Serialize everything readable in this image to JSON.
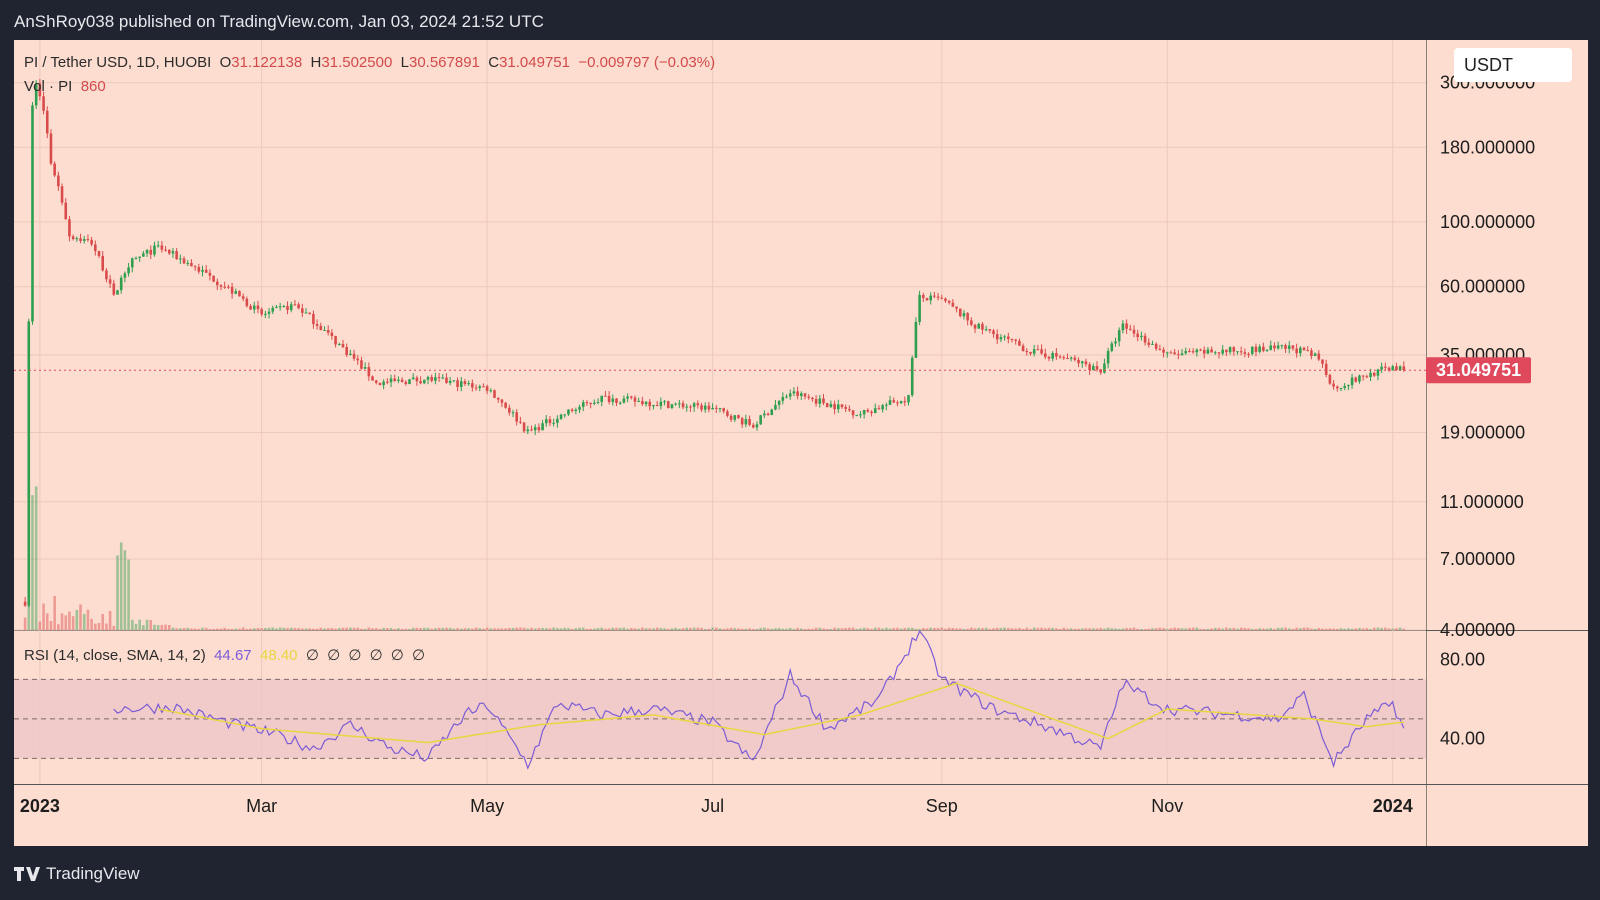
{
  "header": {
    "publisher_line": "AnShRoy038 published on TradingView.com, Jan 03, 2024 21:52 UTC"
  },
  "legend": {
    "symbol": "PI / Tether USD, 1D, HUOBI",
    "o_label": "O",
    "o": "31.122138",
    "h_label": "H",
    "h": "31.502500",
    "l_label": "L",
    "l": "30.567891",
    "c_label": "C",
    "c": "31.049751",
    "change": "−0.009797 (−0.03%)",
    "vol_label": "Vol · PI",
    "vol": "860",
    "rsi_label": "RSI (14, close, SMA, 14, 2)",
    "rsi": "44.67",
    "rsi_sma": "48.40",
    "rsi_nulls": "∅ ∅ ∅ ∅ ∅ ∅"
  },
  "badge": {
    "currency": "USDT"
  },
  "footer": {
    "brand": "TradingView"
  },
  "colors": {
    "up": "#2e9e4f",
    "down": "#d94b4b",
    "rsi": "#7c5cd6",
    "rsi_sma": "#e8d640",
    "band": "#efc8c8",
    "price_label": "#e0485c"
  },
  "chart_data": [
    {
      "type": "candlestick",
      "scale": "log",
      "ylim": [
        4,
        420
      ],
      "xlim": [
        "2022-12-24",
        "2024-01-10"
      ],
      "y_ticks": [
        300,
        180,
        100,
        60,
        35,
        19,
        11,
        7,
        4
      ],
      "y_tick_labels": [
        "300.000000",
        "180.000000",
        "100.000000",
        "60.000000",
        "35.000000",
        "19.000000",
        "11.000000",
        "7.000000",
        "4.000000"
      ],
      "last_price_label": "31.049751",
      "last_price": 31.05,
      "x_ticks": [
        "2022-12-31",
        "2023-03-01",
        "2023-05-01",
        "2023-07-01",
        "2023-09-01",
        "2023-11-01",
        "2024-01-01"
      ],
      "x_tick_labels": [
        "2023",
        "Mar",
        "May",
        "Jul",
        "Sep",
        "Nov",
        "2024"
      ],
      "price_keypoints": [
        [
          "2022-12-27",
          5
        ],
        [
          "2022-12-28",
          45
        ],
        [
          "2022-12-29",
          250
        ],
        [
          "2022-12-30",
          300
        ],
        [
          "2023-01-01",
          240
        ],
        [
          "2023-01-03",
          160
        ],
        [
          "2023-01-08",
          90
        ],
        [
          "2023-01-14",
          85
        ],
        [
          "2023-01-20",
          55
        ],
        [
          "2023-01-24",
          72
        ],
        [
          "2023-02-01",
          82
        ],
        [
          "2023-02-15",
          65
        ],
        [
          "2023-03-01",
          48
        ],
        [
          "2023-03-10",
          52
        ],
        [
          "2023-03-20",
          40
        ],
        [
          "2023-04-01",
          28
        ],
        [
          "2023-04-15",
          29
        ],
        [
          "2023-05-01",
          27
        ],
        [
          "2023-05-12",
          19
        ],
        [
          "2023-05-22",
          22
        ],
        [
          "2023-06-01",
          25
        ],
        [
          "2023-06-15",
          24
        ],
        [
          "2023-07-01",
          23
        ],
        [
          "2023-07-12",
          20
        ],
        [
          "2023-07-22",
          26
        ],
        [
          "2023-08-10",
          22
        ],
        [
          "2023-08-23",
          25
        ],
        [
          "2023-08-26",
          55
        ],
        [
          "2023-09-01",
          54
        ],
        [
          "2023-09-10",
          44
        ],
        [
          "2023-09-25",
          36
        ],
        [
          "2023-10-05",
          34
        ],
        [
          "2023-10-14",
          31
        ],
        [
          "2023-10-20",
          44
        ],
        [
          "2023-11-01",
          35
        ],
        [
          "2023-11-15",
          36
        ],
        [
          "2023-12-05",
          37
        ],
        [
          "2023-12-12",
          34
        ],
        [
          "2023-12-16",
          27
        ],
        [
          "2024-01-01",
          32
        ],
        [
          "2024-01-04",
          31
        ]
      ]
    },
    {
      "type": "line",
      "name": "RSI",
      "ylim": [
        17,
        95
      ],
      "y_ticks": [
        80,
        40
      ],
      "y_tick_labels": [
        "80.00",
        "40.00"
      ],
      "bands": [
        70,
        50,
        30
      ],
      "rsi_keypoints": [
        [
          "2023-01-20",
          55
        ],
        [
          "2023-02-05",
          56
        ],
        [
          "2023-02-20",
          48
        ],
        [
          "2023-03-05",
          42
        ],
        [
          "2023-03-15",
          35
        ],
        [
          "2023-03-25",
          47
        ],
        [
          "2023-04-05",
          35
        ],
        [
          "2023-04-15",
          30
        ],
        [
          "2023-04-25",
          52
        ],
        [
          "2023-05-01",
          57
        ],
        [
          "2023-05-12",
          27
        ],
        [
          "2023-05-20",
          58
        ],
        [
          "2023-06-01",
          52
        ],
        [
          "2023-06-15",
          55
        ],
        [
          "2023-07-01",
          48
        ],
        [
          "2023-07-12",
          28
        ],
        [
          "2023-07-22",
          72
        ],
        [
          "2023-08-01",
          45
        ],
        [
          "2023-08-15",
          60
        ],
        [
          "2023-08-26",
          95
        ],
        [
          "2023-09-01",
          70
        ],
        [
          "2023-09-15",
          55
        ],
        [
          "2023-10-01",
          45
        ],
        [
          "2023-10-14",
          35
        ],
        [
          "2023-10-20",
          68
        ],
        [
          "2023-11-01",
          55
        ],
        [
          "2023-11-20",
          52
        ],
        [
          "2023-12-01",
          50
        ],
        [
          "2023-12-08",
          62
        ],
        [
          "2023-12-16",
          28
        ],
        [
          "2023-12-25",
          50
        ],
        [
          "2024-01-01",
          58
        ],
        [
          "2024-01-04",
          44.67
        ]
      ],
      "sma_keypoints": [
        [
          "2023-02-01",
          55
        ],
        [
          "2023-03-01",
          45
        ],
        [
          "2023-04-15",
          38
        ],
        [
          "2023-05-15",
          47
        ],
        [
          "2023-06-15",
          52
        ],
        [
          "2023-07-15",
          42
        ],
        [
          "2023-08-10",
          52
        ],
        [
          "2023-09-05",
          68
        ],
        [
          "2023-10-01",
          50
        ],
        [
          "2023-10-16",
          40
        ],
        [
          "2023-11-01",
          55
        ],
        [
          "2023-12-10",
          50
        ],
        [
          "2023-12-25",
          46
        ],
        [
          "2024-01-04",
          48.4
        ]
      ],
      "last_rsi": 44.67,
      "last_sma": 48.4
    }
  ]
}
